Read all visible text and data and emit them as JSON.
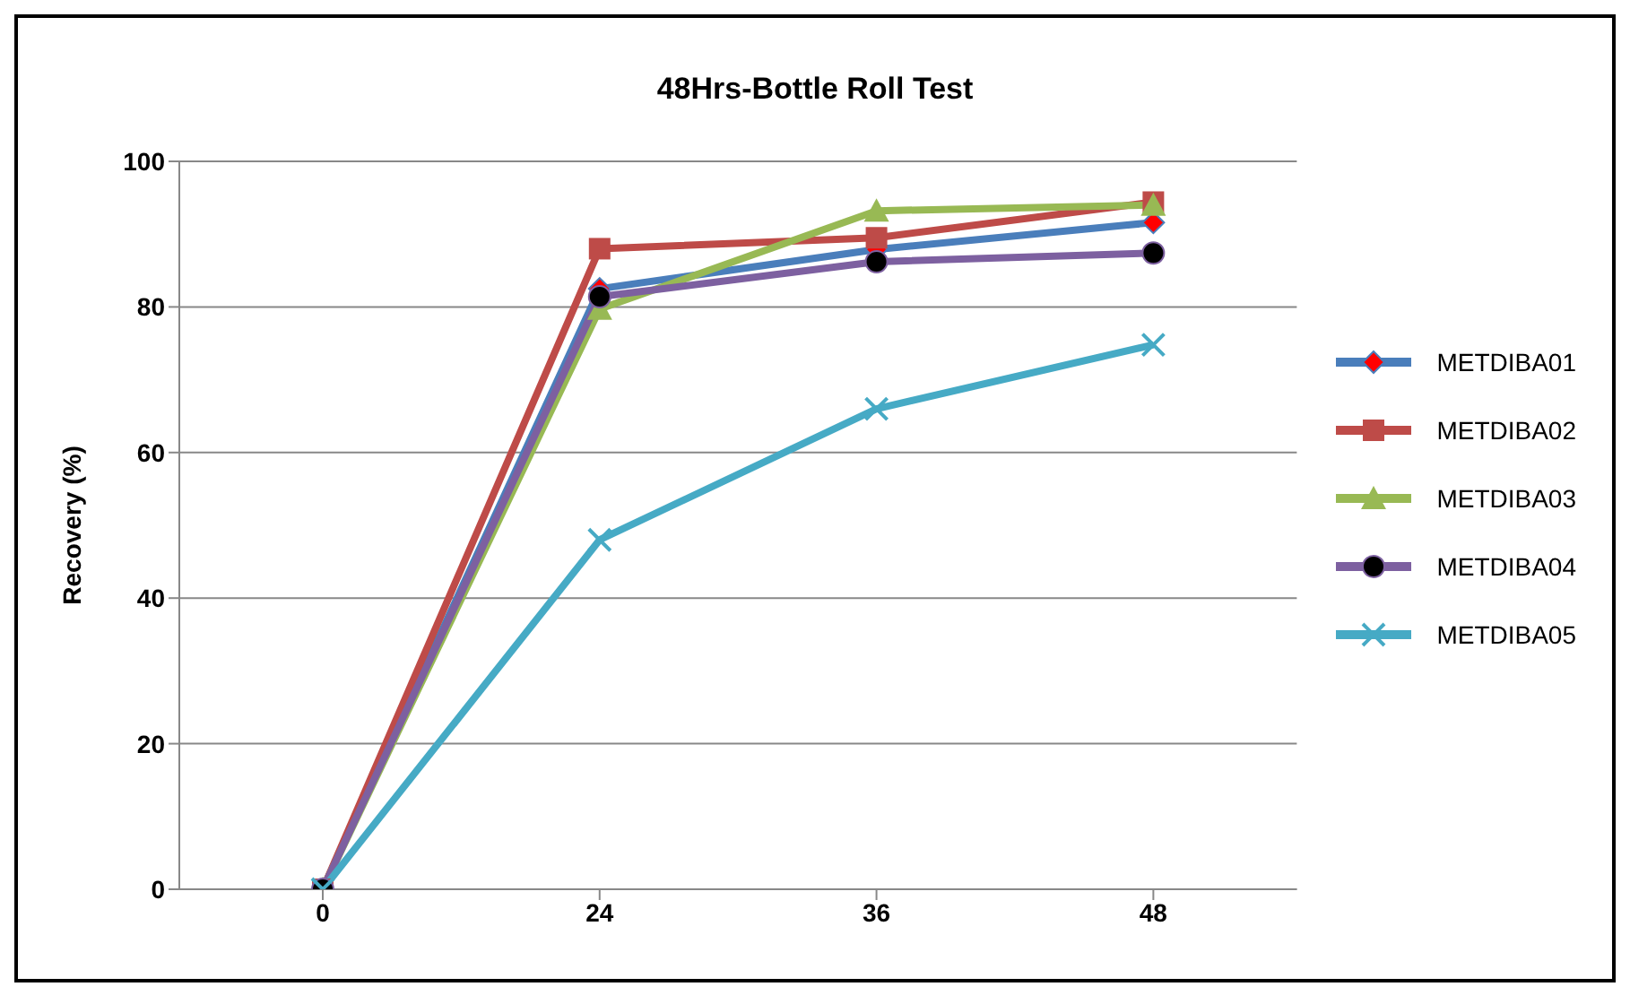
{
  "chart_data": {
    "type": "line",
    "title": "48Hrs-Bottle Roll Test",
    "ylabel": "Recovery (%)",
    "categories": [
      "0",
      "24",
      "36",
      "48"
    ],
    "series": [
      {
        "name": "METDIBA01",
        "color": "#4a7ebb",
        "marker": "diamond",
        "values": [
          0,
          82.5,
          87.9,
          91.6
        ]
      },
      {
        "name": "METDIBA02",
        "color": "#be4b48",
        "marker": "square",
        "values": [
          0,
          88,
          89.5,
          94.4
        ]
      },
      {
        "name": "METDIBA03",
        "color": "#98b954",
        "marker": "triangle",
        "values": [
          0,
          79.7,
          93.2,
          94
        ]
      },
      {
        "name": "METDIBA04",
        "color": "#7d60a0",
        "marker": "circle",
        "values": [
          0,
          81.4,
          86.2,
          87.4
        ]
      },
      {
        "name": "METDIBA05",
        "color": "#46aac5",
        "marker": "cross",
        "values": [
          0,
          48,
          66,
          74.8
        ]
      }
    ],
    "ylim": [
      0,
      100
    ],
    "yticks": [
      0,
      20,
      40,
      60,
      80,
      100
    ],
    "grid": "y",
    "legend": "right"
  }
}
